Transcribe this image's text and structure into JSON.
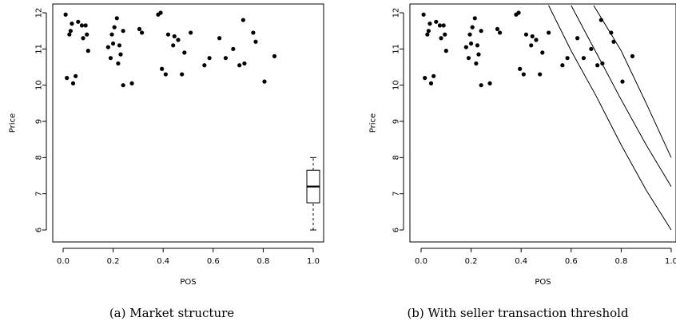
{
  "figure": {
    "caption_a": "(a)  Market structure",
    "caption_b": "(b)  With seller transaction threshold"
  },
  "chart_data": [
    {
      "type": "scatter",
      "panel": "a",
      "xlabel": "POS",
      "ylabel": "Price",
      "xlim": [
        0,
        1
      ],
      "ylim": [
        6,
        12
      ],
      "xticks": [
        "0.0",
        "0.2",
        "0.4",
        "0.6",
        "0.8",
        "1.0"
      ],
      "yticks": [
        "6",
        "7",
        "8",
        "9",
        "10",
        "11",
        "12"
      ],
      "points": [
        [
          0.01,
          11.95
        ],
        [
          0.015,
          10.2
        ],
        [
          0.025,
          11.4
        ],
        [
          0.03,
          11.5
        ],
        [
          0.035,
          11.7
        ],
        [
          0.04,
          10.05
        ],
        [
          0.05,
          10.25
        ],
        [
          0.06,
          11.75
        ],
        [
          0.075,
          11.65
        ],
        [
          0.08,
          11.3
        ],
        [
          0.09,
          11.65
        ],
        [
          0.095,
          11.4
        ],
        [
          0.1,
          10.95
        ],
        [
          0.18,
          11.05
        ],
        [
          0.19,
          10.75
        ],
        [
          0.195,
          11.4
        ],
        [
          0.2,
          11.15
        ],
        [
          0.205,
          11.6
        ],
        [
          0.215,
          11.85
        ],
        [
          0.22,
          10.6
        ],
        [
          0.225,
          11.1
        ],
        [
          0.23,
          10.85
        ],
        [
          0.24,
          11.5
        ],
        [
          0.24,
          10.0
        ],
        [
          0.275,
          10.05
        ],
        [
          0.305,
          11.55
        ],
        [
          0.315,
          11.45
        ],
        [
          0.38,
          11.95
        ],
        [
          0.39,
          12.0
        ],
        [
          0.395,
          10.45
        ],
        [
          0.41,
          10.3
        ],
        [
          0.42,
          11.4
        ],
        [
          0.44,
          11.1
        ],
        [
          0.445,
          11.35
        ],
        [
          0.46,
          11.25
        ],
        [
          0.475,
          10.3
        ],
        [
          0.485,
          10.9
        ],
        [
          0.51,
          11.45
        ],
        [
          0.565,
          10.55
        ],
        [
          0.585,
          10.75
        ],
        [
          0.625,
          11.3
        ],
        [
          0.65,
          10.75
        ],
        [
          0.68,
          11.0
        ],
        [
          0.705,
          10.55
        ],
        [
          0.72,
          11.8
        ],
        [
          0.725,
          10.6
        ],
        [
          0.76,
          11.45
        ],
        [
          0.77,
          11.2
        ],
        [
          0.805,
          10.1
        ],
        [
          0.845,
          10.8
        ]
      ],
      "boxplot": {
        "x": 1.0,
        "min": 6.0,
        "q1": 6.75,
        "median": 7.2,
        "q3": 7.65,
        "max": 8.0
      }
    },
    {
      "type": "scatter",
      "panel": "b",
      "xlabel": "POS",
      "ylabel": "Price",
      "xlim": [
        0,
        1
      ],
      "ylim": [
        6,
        12
      ],
      "xticks": [
        "0.0",
        "0.2",
        "0.4",
        "0.6",
        "0.8",
        "1.0"
      ],
      "yticks": [
        "6",
        "7",
        "8",
        "9",
        "10",
        "11",
        "12"
      ],
      "points": [
        [
          0.01,
          11.95
        ],
        [
          0.015,
          10.2
        ],
        [
          0.025,
          11.4
        ],
        [
          0.03,
          11.5
        ],
        [
          0.035,
          11.7
        ],
        [
          0.04,
          10.05
        ],
        [
          0.05,
          10.25
        ],
        [
          0.06,
          11.75
        ],
        [
          0.075,
          11.65
        ],
        [
          0.08,
          11.3
        ],
        [
          0.09,
          11.65
        ],
        [
          0.095,
          11.4
        ],
        [
          0.1,
          10.95
        ],
        [
          0.18,
          11.05
        ],
        [
          0.19,
          10.75
        ],
        [
          0.195,
          11.4
        ],
        [
          0.2,
          11.15
        ],
        [
          0.205,
          11.6
        ],
        [
          0.215,
          11.85
        ],
        [
          0.22,
          10.6
        ],
        [
          0.225,
          11.1
        ],
        [
          0.23,
          10.85
        ],
        [
          0.24,
          11.5
        ],
        [
          0.24,
          10.0
        ],
        [
          0.275,
          10.05
        ],
        [
          0.305,
          11.55
        ],
        [
          0.315,
          11.45
        ],
        [
          0.38,
          11.95
        ],
        [
          0.39,
          12.0
        ],
        [
          0.395,
          10.45
        ],
        [
          0.41,
          10.3
        ],
        [
          0.42,
          11.4
        ],
        [
          0.44,
          11.1
        ],
        [
          0.445,
          11.35
        ],
        [
          0.46,
          11.25
        ],
        [
          0.475,
          10.3
        ],
        [
          0.485,
          10.9
        ],
        [
          0.51,
          11.45
        ],
        [
          0.565,
          10.55
        ],
        [
          0.585,
          10.75
        ],
        [
          0.625,
          11.3
        ],
        [
          0.65,
          10.75
        ],
        [
          0.68,
          11.0
        ],
        [
          0.705,
          10.55
        ],
        [
          0.72,
          11.8
        ],
        [
          0.725,
          10.6
        ],
        [
          0.76,
          11.45
        ],
        [
          0.77,
          11.2
        ],
        [
          0.805,
          10.1
        ],
        [
          0.845,
          10.8
        ]
      ],
      "curves": [
        [
          [
            0.51,
            12.2
          ],
          [
            0.6,
            10.95
          ],
          [
            0.7,
            9.7
          ],
          [
            0.8,
            8.35
          ],
          [
            0.9,
            7.1
          ],
          [
            1.0,
            6.0
          ]
        ],
        [
          [
            0.6,
            12.2
          ],
          [
            0.7,
            10.9
          ],
          [
            0.8,
            9.6
          ],
          [
            0.9,
            8.35
          ],
          [
            1.0,
            7.2
          ]
        ],
        [
          [
            0.69,
            12.2
          ],
          [
            0.8,
            10.95
          ],
          [
            0.9,
            9.5
          ],
          [
            1.0,
            8.0
          ]
        ]
      ]
    }
  ]
}
